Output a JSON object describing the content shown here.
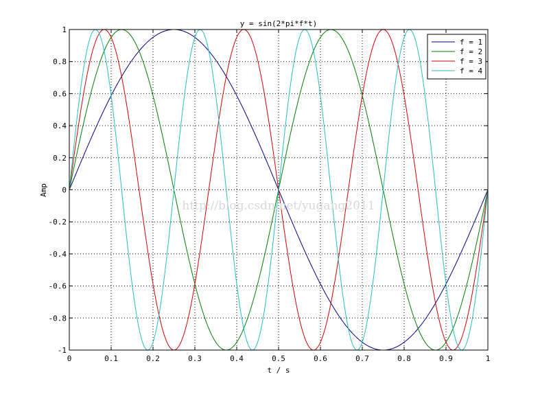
{
  "chart_data": {
    "type": "line",
    "title": "y = sin(2*pi*f*t)",
    "xlabel": "t / s",
    "ylabel": "Amp",
    "xlim": [
      0,
      1
    ],
    "ylim": [
      -1,
      1
    ],
    "x_ticks": [
      0,
      0.1,
      0.2,
      0.3,
      0.4,
      0.5,
      0.6,
      0.7,
      0.8,
      0.9,
      1
    ],
    "y_ticks": [
      -1,
      -0.8,
      -0.6,
      -0.4,
      -0.2,
      0,
      0.2,
      0.4,
      0.6,
      0.8,
      1
    ],
    "x_tick_labels": [
      "0",
      "0.1",
      "0.2",
      "0.3",
      "0.4",
      "0.5",
      "0.6",
      "0.7",
      "0.8",
      "0.9",
      "1"
    ],
    "y_tick_labels": [
      "-1",
      "-0.8",
      "-0.6",
      "-0.4",
      "-0.2",
      "0",
      "0.2",
      "0.4",
      "0.6",
      "0.8",
      "1"
    ],
    "grid": true,
    "legend_position": "top-right",
    "series": [
      {
        "name": "f = 1",
        "frequency": 1,
        "color": "#00008b"
      },
      {
        "name": "f = 2",
        "frequency": 2,
        "color": "#007f00"
      },
      {
        "name": "f = 3",
        "frequency": 3,
        "color": "#d40000"
      },
      {
        "name": "f = 4",
        "frequency": 4,
        "color": "#22bfc4"
      }
    ],
    "watermark": "http://blog.csdn.net/yugang2011"
  }
}
